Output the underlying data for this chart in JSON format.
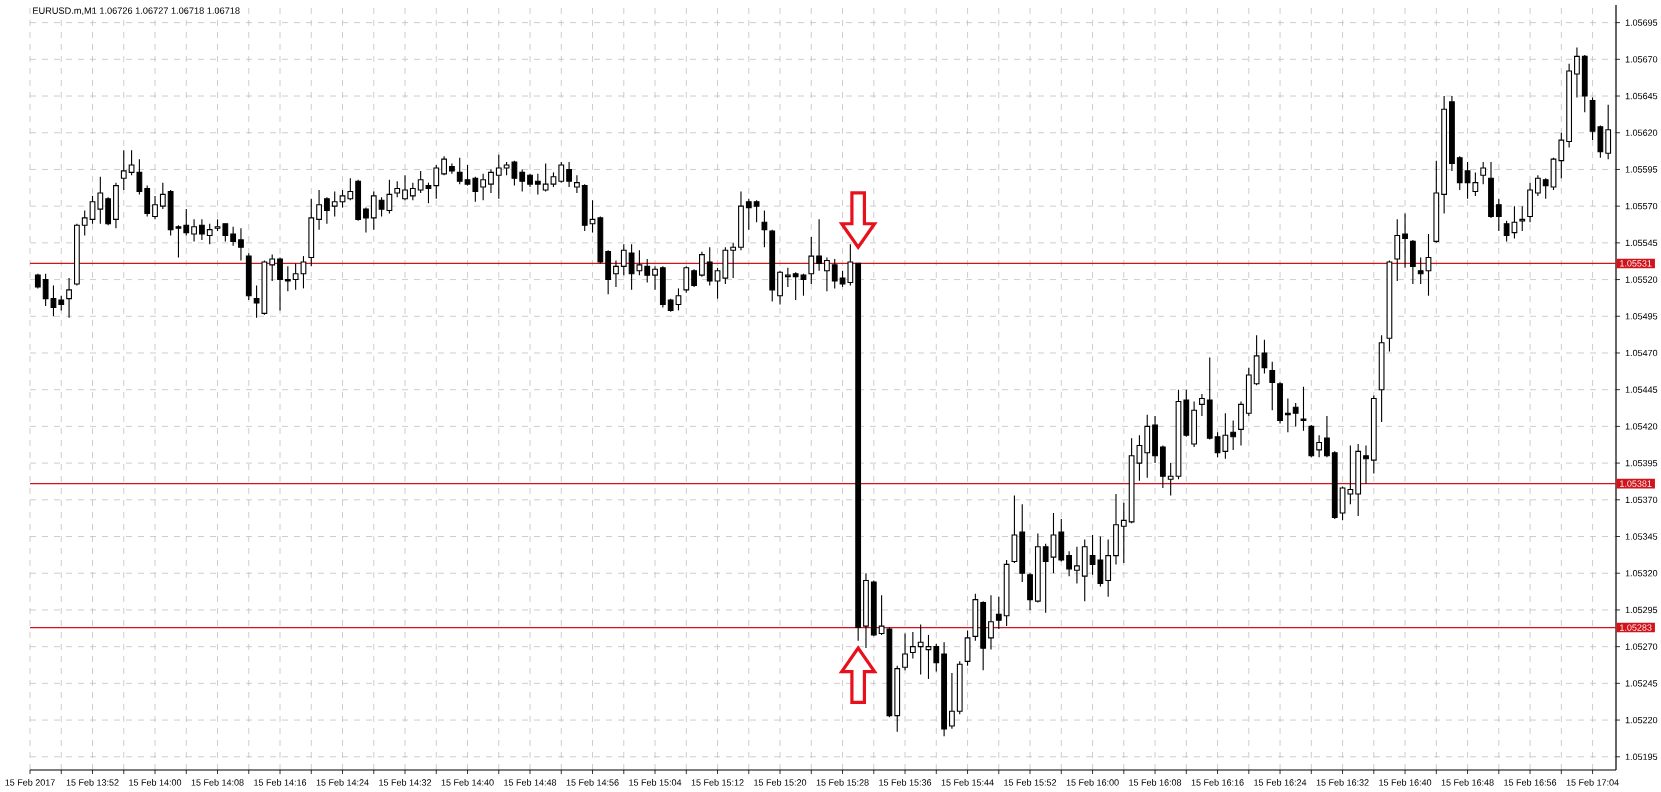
{
  "chart_data": {
    "type": "candlestick",
    "title": "EURUSD.m,M1  1.06726 1.06727 1.06718 1.06718",
    "x": [
      "2017-02-15T13:45",
      "2017-02-15T13:46",
      "2017-02-15T13:47",
      "2017-02-15T13:48",
      "2017-02-15T13:49",
      "2017-02-15T13:50",
      "2017-02-15T13:51",
      "2017-02-15T13:52",
      "2017-02-15T13:53",
      "2017-02-15T13:54",
      "2017-02-15T13:55",
      "2017-02-15T13:56",
      "2017-02-15T13:57",
      "2017-02-15T13:58",
      "2017-02-15T13:59",
      "2017-02-15T14:00",
      "2017-02-15T14:01",
      "2017-02-15T14:02",
      "2017-02-15T14:03",
      "2017-02-15T14:04",
      "2017-02-15T14:05",
      "2017-02-15T14:06",
      "2017-02-15T14:07",
      "2017-02-15T14:08",
      "2017-02-15T14:09",
      "2017-02-15T14:10",
      "2017-02-15T14:11",
      "2017-02-15T14:12",
      "2017-02-15T14:13",
      "2017-02-15T14:14",
      "2017-02-15T14:15",
      "2017-02-15T14:16",
      "2017-02-15T14:17",
      "2017-02-15T14:18",
      "2017-02-15T14:19",
      "2017-02-15T14:20",
      "2017-02-15T14:21",
      "2017-02-15T14:22",
      "2017-02-15T14:23",
      "2017-02-15T14:24",
      "2017-02-15T14:25",
      "2017-02-15T14:26",
      "2017-02-15T14:27",
      "2017-02-15T14:28",
      "2017-02-15T14:29",
      "2017-02-15T14:30",
      "2017-02-15T14:31",
      "2017-02-15T14:32",
      "2017-02-15T14:33",
      "2017-02-15T14:34",
      "2017-02-15T14:35",
      "2017-02-15T14:36",
      "2017-02-15T14:37",
      "2017-02-15T14:38",
      "2017-02-15T14:39",
      "2017-02-15T14:40",
      "2017-02-15T14:41",
      "2017-02-15T14:42",
      "2017-02-15T14:43",
      "2017-02-15T14:44",
      "2017-02-15T14:45",
      "2017-02-15T14:46",
      "2017-02-15T14:47",
      "2017-02-15T14:48",
      "2017-02-15T14:49",
      "2017-02-15T14:50",
      "2017-02-15T14:51",
      "2017-02-15T14:52",
      "2017-02-15T14:53",
      "2017-02-15T14:54",
      "2017-02-15T14:55",
      "2017-02-15T14:56",
      "2017-02-15T14:57",
      "2017-02-15T14:58",
      "2017-02-15T14:59",
      "2017-02-15T15:00",
      "2017-02-15T15:01",
      "2017-02-15T15:02",
      "2017-02-15T15:03",
      "2017-02-15T15:04",
      "2017-02-15T15:05",
      "2017-02-15T15:06",
      "2017-02-15T15:07",
      "2017-02-15T15:08",
      "2017-02-15T15:09",
      "2017-02-15T15:10",
      "2017-02-15T15:11",
      "2017-02-15T15:12",
      "2017-02-15T15:13",
      "2017-02-15T15:14",
      "2017-02-15T15:15",
      "2017-02-15T15:16",
      "2017-02-15T15:17",
      "2017-02-15T15:18",
      "2017-02-15T15:19",
      "2017-02-15T15:20",
      "2017-02-15T15:21",
      "2017-02-15T15:22",
      "2017-02-15T15:23",
      "2017-02-15T15:24",
      "2017-02-15T15:25",
      "2017-02-15T15:26",
      "2017-02-15T15:27",
      "2017-02-15T15:28",
      "2017-02-15T15:29",
      "2017-02-15T15:30",
      "2017-02-15T15:31",
      "2017-02-15T15:32",
      "2017-02-15T15:33",
      "2017-02-15T15:34",
      "2017-02-15T15:35",
      "2017-02-15T15:36",
      "2017-02-15T15:37",
      "2017-02-15T15:38",
      "2017-02-15T15:39",
      "2017-02-15T15:40",
      "2017-02-15T15:41",
      "2017-02-15T15:42",
      "2017-02-15T15:43",
      "2017-02-15T15:44",
      "2017-02-15T15:45",
      "2017-02-15T15:46",
      "2017-02-15T15:47",
      "2017-02-15T15:48",
      "2017-02-15T15:49",
      "2017-02-15T15:50",
      "2017-02-15T15:51",
      "2017-02-15T15:52",
      "2017-02-15T15:53",
      "2017-02-15T15:54",
      "2017-02-15T15:55",
      "2017-02-15T15:56",
      "2017-02-15T15:57",
      "2017-02-15T15:58",
      "2017-02-15T15:59",
      "2017-02-15T16:00",
      "2017-02-15T16:01",
      "2017-02-15T16:02",
      "2017-02-15T16:03",
      "2017-02-15T16:04",
      "2017-02-15T16:05",
      "2017-02-15T16:06",
      "2017-02-15T16:07",
      "2017-02-15T16:08",
      "2017-02-15T16:09",
      "2017-02-15T16:10",
      "2017-02-15T16:11",
      "2017-02-15T16:12",
      "2017-02-15T16:13",
      "2017-02-15T16:14",
      "2017-02-15T16:15",
      "2017-02-15T16:16",
      "2017-02-15T16:17",
      "2017-02-15T16:18",
      "2017-02-15T16:19",
      "2017-02-15T16:20",
      "2017-02-15T16:21",
      "2017-02-15T16:22",
      "2017-02-15T16:23",
      "2017-02-15T16:24",
      "2017-02-15T16:25",
      "2017-02-15T16:26",
      "2017-02-15T16:27",
      "2017-02-15T16:28",
      "2017-02-15T16:29",
      "2017-02-15T16:30",
      "2017-02-15T16:31",
      "2017-02-15T16:32",
      "2017-02-15T16:33",
      "2017-02-15T16:34",
      "2017-02-15T16:35",
      "2017-02-15T16:36",
      "2017-02-15T16:37",
      "2017-02-15T16:38",
      "2017-02-15T16:39",
      "2017-02-15T16:40",
      "2017-02-15T16:41",
      "2017-02-15T16:42",
      "2017-02-15T16:43",
      "2017-02-15T16:44",
      "2017-02-15T16:45",
      "2017-02-15T16:46",
      "2017-02-15T16:47",
      "2017-02-15T16:48",
      "2017-02-15T16:49",
      "2017-02-15T16:50",
      "2017-02-15T16:51",
      "2017-02-15T16:52",
      "2017-02-15T16:53",
      "2017-02-15T16:54",
      "2017-02-15T16:55",
      "2017-02-15T16:56",
      "2017-02-15T16:57",
      "2017-02-15T16:58",
      "2017-02-15T16:59",
      "2017-02-15T17:00",
      "2017-02-15T17:01",
      "2017-02-15T17:02",
      "2017-02-15T17:03",
      "2017-02-15T17:04",
      "2017-02-15T17:05",
      "2017-02-15T17:06"
    ],
    "ohlc": [
      [
        1.05523,
        1.05524,
        1.05514,
        1.05515
      ],
      [
        1.0552,
        1.05524,
        1.05502,
        1.05507
      ],
      [
        1.05507,
        1.05516,
        1.05495,
        1.05501
      ],
      [
        1.05506,
        1.05509,
        1.05499,
        1.05503
      ],
      [
        1.05507,
        1.05521,
        1.05494,
        1.05513
      ],
      [
        1.05517,
        1.05558,
        1.05516,
        1.05557
      ],
      [
        1.05557,
        1.05567,
        1.0555,
        1.05562
      ],
      [
        1.05561,
        1.05577,
        1.05558,
        1.05573
      ],
      [
        1.05568,
        1.0559,
        1.05558,
        1.05579
      ],
      [
        1.05575,
        1.05576,
        1.05557,
        1.05558
      ],
      [
        1.05561,
        1.05586,
        1.05555,
        1.05584
      ],
      [
        1.05589,
        1.05608,
        1.05581,
        1.05594
      ],
      [
        1.05593,
        1.05608,
        1.05591,
        1.05598
      ],
      [
        1.05593,
        1.05602,
        1.05578,
        1.0558
      ],
      [
        1.05582,
        1.05584,
        1.05563,
        1.05565
      ],
      [
        1.05563,
        1.05577,
        1.05561,
        1.05571
      ],
      [
        1.0557,
        1.05586,
        1.05568,
        1.05578
      ],
      [
        1.0558,
        1.05581,
        1.0555,
        1.05554
      ],
      [
        1.05556,
        1.05557,
        1.05535,
        1.05555
      ],
      [
        1.05557,
        1.05568,
        1.0555,
        1.05552
      ],
      [
        1.05551,
        1.05561,
        1.05546,
        1.05556
      ],
      [
        1.05557,
        1.05561,
        1.05547,
        1.05551
      ],
      [
        1.0555,
        1.05558,
        1.05544,
        1.05554
      ],
      [
        1.05555,
        1.05561,
        1.05553,
        1.05556
      ],
      [
        1.05558,
        1.05558,
        1.05546,
        1.0555
      ],
      [
        1.05551,
        1.05556,
        1.05543,
        1.05546
      ],
      [
        1.05547,
        1.05555,
        1.05533,
        1.05542
      ],
      [
        1.05536,
        1.05538,
        1.05506,
        1.05509
      ],
      [
        1.05507,
        1.05516,
        1.05494,
        1.05504
      ],
      [
        1.05497,
        1.05533,
        1.05496,
        1.05532
      ],
      [
        1.0553,
        1.05537,
        1.05519,
        1.05534
      ],
      [
        1.05534,
        1.05535,
        1.05499,
        1.0552
      ],
      [
        1.0552,
        1.05529,
        1.05512,
        1.05519
      ],
      [
        1.0552,
        1.05531,
        1.05513,
        1.05524
      ],
      [
        1.05524,
        1.05536,
        1.05514,
        1.05532
      ],
      [
        1.05535,
        1.05575,
        1.05529,
        1.05562
      ],
      [
        1.05561,
        1.05581,
        1.05554,
        1.05571
      ],
      [
        1.05575,
        1.05576,
        1.05558,
        1.05567
      ],
      [
        1.0557,
        1.0558,
        1.05563,
        1.05573
      ],
      [
        1.05573,
        1.05581,
        1.05569,
        1.05577
      ],
      [
        1.05575,
        1.05589,
        1.05574,
        1.0558
      ],
      [
        1.05587,
        1.05588,
        1.0556,
        1.05561
      ],
      [
        1.05568,
        1.05569,
        1.05552,
        1.05562
      ],
      [
        1.05562,
        1.0558,
        1.05554,
        1.05577
      ],
      [
        1.05574,
        1.05576,
        1.05563,
        1.05568
      ],
      [
        1.05567,
        1.05588,
        1.05565,
        1.05578
      ],
      [
        1.05579,
        1.05587,
        1.05576,
        1.05582
      ],
      [
        1.05575,
        1.05591,
        1.05574,
        1.05581
      ],
      [
        1.05577,
        1.05586,
        1.05574,
        1.05582
      ],
      [
        1.05581,
        1.05594,
        1.05579,
        1.05588
      ],
      [
        1.05584,
        1.05586,
        1.05572,
        1.05582
      ],
      [
        1.05584,
        1.05598,
        1.05575,
        1.05596
      ],
      [
        1.05592,
        1.05604,
        1.05591,
        1.05602
      ],
      [
        1.05597,
        1.05599,
        1.05592,
        1.05594
      ],
      [
        1.05593,
        1.05603,
        1.05585,
        1.05587
      ],
      [
        1.05588,
        1.05598,
        1.05584,
        1.05585
      ],
      [
        1.05589,
        1.0559,
        1.05573,
        1.0558
      ],
      [
        1.05583,
        1.05592,
        1.05574,
        1.05588
      ],
      [
        1.05585,
        1.05595,
        1.05579,
        1.05593
      ],
      [
        1.05591,
        1.05605,
        1.05575,
        1.05596
      ],
      [
        1.05596,
        1.056,
        1.05591,
        1.05598
      ],
      [
        1.056,
        1.05601,
        1.05584,
        1.05589
      ],
      [
        1.05593,
        1.05595,
        1.0558,
        1.05587
      ],
      [
        1.05591,
        1.05592,
        1.05583,
        1.05585
      ],
      [
        1.05587,
        1.05592,
        1.05578,
        1.05585
      ],
      [
        1.05581,
        1.05599,
        1.0558,
        1.05585
      ],
      [
        1.05585,
        1.05593,
        1.05583,
        1.0559
      ],
      [
        1.05587,
        1.056,
        1.05586,
        1.05598
      ],
      [
        1.05595,
        1.056,
        1.05583,
        1.05587
      ],
      [
        1.05583,
        1.05591,
        1.05579,
        1.05586
      ],
      [
        1.05584,
        1.05585,
        1.05553,
        1.05557
      ],
      [
        1.05558,
        1.05574,
        1.05552,
        1.05561
      ],
      [
        1.05562,
        1.05563,
        1.05531,
        1.05532
      ],
      [
        1.05539,
        1.0554,
        1.0551,
        1.0552
      ],
      [
        1.05524,
        1.05533,
        1.05515,
        1.05529
      ],
      [
        1.05529,
        1.05544,
        1.05523,
        1.0554
      ],
      [
        1.05538,
        1.05544,
        1.05513,
        1.05524
      ],
      [
        1.05526,
        1.0554,
        1.05523,
        1.0553
      ],
      [
        1.05529,
        1.05534,
        1.05518,
        1.05523
      ],
      [
        1.05523,
        1.05529,
        1.05513,
        1.05527
      ],
      [
        1.05528,
        1.05529,
        1.05501,
        1.05503
      ],
      [
        1.05506,
        1.05507,
        1.05498,
        1.05499
      ],
      [
        1.05503,
        1.05514,
        1.05499,
        1.05509
      ],
      [
        1.05513,
        1.05529,
        1.05511,
        1.05528
      ],
      [
        1.05526,
        1.05527,
        1.05515,
        1.05516
      ],
      [
        1.05523,
        1.05539,
        1.05522,
        1.05537
      ],
      [
        1.05532,
        1.05542,
        1.05516,
        1.05519
      ],
      [
        1.05519,
        1.05528,
        1.05507,
        1.05526
      ],
      [
        1.05521,
        1.05542,
        1.05517,
        1.0554
      ],
      [
        1.0554,
        1.05545,
        1.05521,
        1.05542
      ],
      [
        1.05542,
        1.0558,
        1.0554,
        1.0557
      ],
      [
        1.05573,
        1.05575,
        1.05554,
        1.05569
      ],
      [
        1.05573,
        1.05574,
        1.05559,
        1.0557
      ],
      [
        1.05559,
        1.05567,
        1.05542,
        1.05554
      ],
      [
        1.05553,
        1.05554,
        1.05505,
        1.05513
      ],
      [
        1.05509,
        1.05526,
        1.05503,
        1.05525
      ],
      [
        1.05522,
        1.05528,
        1.05515,
        1.05523
      ],
      [
        1.05524,
        1.05525,
        1.05506,
        1.05522
      ],
      [
        1.05523,
        1.05524,
        1.05509,
        1.0552
      ],
      [
        1.05524,
        1.05549,
        1.05517,
        1.05536
      ],
      [
        1.05536,
        1.05561,
        1.05526,
        1.05531
      ],
      [
        1.05526,
        1.05535,
        1.05512,
        1.05533
      ],
      [
        1.0553,
        1.05534,
        1.05514,
        1.05519
      ],
      [
        1.05521,
        1.05526,
        1.05515,
        1.05517
      ],
      [
        1.05518,
        1.05544,
        1.05516,
        1.05532
      ],
      [
        1.05531,
        1.05531,
        1.05274,
        1.05283
      ],
      [
        1.05284,
        1.0532,
        1.05269,
        1.05315
      ],
      [
        1.05314,
        1.05315,
        1.05277,
        1.05278
      ],
      [
        1.05279,
        1.05305,
        1.05278,
        1.05284
      ],
      [
        1.05282,
        1.05283,
        1.05222,
        1.05223
      ],
      [
        1.05223,
        1.05257,
        1.05212,
        1.05255
      ],
      [
        1.05256,
        1.05279,
        1.05254,
        1.05265
      ],
      [
        1.05266,
        1.0528,
        1.05262,
        1.0527
      ],
      [
        1.0527,
        1.05285,
        1.05251,
        1.05273
      ],
      [
        1.05268,
        1.05278,
        1.05248,
        1.0527
      ],
      [
        1.0527,
        1.05272,
        1.05253,
        1.05259
      ],
      [
        1.05265,
        1.05273,
        1.05209,
        1.05214
      ],
      [
        1.05216,
        1.05252,
        1.05214,
        1.05226
      ],
      [
        1.05226,
        1.0526,
        1.05224,
        1.05258
      ],
      [
        1.0526,
        1.05281,
        1.05257,
        1.05276
      ],
      [
        1.05277,
        1.05306,
        1.05274,
        1.05302
      ],
      [
        1.053,
        1.05301,
        1.05254,
        1.05269
      ],
      [
        1.05276,
        1.05305,
        1.05268,
        1.05287
      ],
      [
        1.05292,
        1.05304,
        1.05282,
        1.05288
      ],
      [
        1.05291,
        1.05329,
        1.05284,
        1.05326
      ],
      [
        1.05328,
        1.05373,
        1.05327,
        1.05346
      ],
      [
        1.05348,
        1.05367,
        1.05314,
        1.0532
      ],
      [
        1.05319,
        1.0532,
        1.05295,
        1.05302
      ],
      [
        1.05301,
        1.05347,
        1.053,
        1.05338
      ],
      [
        1.05338,
        1.0534,
        1.05293,
        1.05328
      ],
      [
        1.05331,
        1.05361,
        1.0532,
        1.05346
      ],
      [
        1.05348,
        1.05357,
        1.05328,
        1.05329
      ],
      [
        1.05332,
        1.05335,
        1.05318,
        1.05323
      ],
      [
        1.05322,
        1.05338,
        1.05313,
        1.05325
      ],
      [
        1.05318,
        1.05343,
        1.05301,
        1.05338
      ],
      [
        1.05332,
        1.05346,
        1.05319,
        1.05326
      ],
      [
        1.05329,
        1.05345,
        1.05311,
        1.05313
      ],
      [
        1.05315,
        1.05343,
        1.05304,
        1.05332
      ],
      [
        1.05332,
        1.05374,
        1.05326,
        1.05353
      ],
      [
        1.05352,
        1.05368,
        1.05327,
        1.05356
      ],
      [
        1.05355,
        1.05412,
        1.05354,
        1.054
      ],
      [
        1.05395,
        1.05414,
        1.05383,
        1.05407
      ],
      [
        1.05402,
        1.05428,
        1.05385,
        1.0542
      ],
      [
        1.05421,
        1.05427,
        1.05395,
        1.054
      ],
      [
        1.05406,
        1.05407,
        1.05378,
        1.05386
      ],
      [
        1.05384,
        1.05395,
        1.05373,
        1.05386
      ],
      [
        1.05386,
        1.05445,
        1.05384,
        1.05437
      ],
      [
        1.05438,
        1.05445,
        1.05413,
        1.05414
      ],
      [
        1.05408,
        1.05437,
        1.05406,
        1.05431
      ],
      [
        1.05435,
        1.05442,
        1.05427,
        1.05439
      ],
      [
        1.05438,
        1.05467,
        1.05411,
        1.05412
      ],
      [
        1.05413,
        1.05416,
        1.05399,
        1.05402
      ],
      [
        1.05403,
        1.05429,
        1.05398,
        1.05414
      ],
      [
        1.05416,
        1.05424,
        1.05404,
        1.05413
      ],
      [
        1.05418,
        1.05437,
        1.05407,
        1.05435
      ],
      [
        1.05429,
        1.0546,
        1.05427,
        1.05455
      ],
      [
        1.05449,
        1.05482,
        1.05448,
        1.05468
      ],
      [
        1.0547,
        1.05479,
        1.05456,
        1.0546
      ],
      [
        1.05458,
        1.05464,
        1.05431,
        1.0545
      ],
      [
        1.05449,
        1.0545,
        1.05422,
        1.05424
      ],
      [
        1.05429,
        1.05439,
        1.05416,
        1.05428
      ],
      [
        1.05433,
        1.05436,
        1.0542,
        1.05429
      ],
      [
        1.05425,
        1.05447,
        1.05417,
        1.05424
      ],
      [
        1.0542,
        1.05421,
        1.05399,
        1.054
      ],
      [
        1.05404,
        1.05414,
        1.05399,
        1.05409
      ],
      [
        1.05412,
        1.05427,
        1.05399,
        1.054
      ],
      [
        1.05402,
        1.05403,
        1.05357,
        1.05358
      ],
      [
        1.05361,
        1.05379,
        1.05356,
        1.05378
      ],
      [
        1.05374,
        1.05407,
        1.05367,
        1.05377
      ],
      [
        1.05374,
        1.05408,
        1.05359,
        1.05403
      ],
      [
        1.054,
        1.05407,
        1.05381,
        1.05398
      ],
      [
        1.05397,
        1.05441,
        1.05388,
        1.05439
      ],
      [
        1.05445,
        1.05482,
        1.05423,
        1.05477
      ],
      [
        1.0548,
        1.05533,
        1.05471,
        1.05532
      ],
      [
        1.05534,
        1.05561,
        1.05519,
        1.0555
      ],
      [
        1.05551,
        1.05565,
        1.05528,
        1.05548
      ],
      [
        1.05546,
        1.05547,
        1.05517,
        1.05529
      ],
      [
        1.05526,
        1.05535,
        1.05517,
        1.05524
      ],
      [
        1.05526,
        1.05551,
        1.05509,
        1.05535
      ],
      [
        1.05546,
        1.05601,
        1.05545,
        1.05579
      ],
      [
        1.05578,
        1.05645,
        1.05565,
        1.05636
      ],
      [
        1.05641,
        1.05645,
        1.05594,
        1.05599
      ],
      [
        1.05603,
        1.05604,
        1.05581,
        1.05586
      ],
      [
        1.05594,
        1.056,
        1.05575,
        1.05586
      ],
      [
        1.0558,
        1.05593,
        1.05577,
        1.05586
      ],
      [
        1.05591,
        1.056,
        1.05585,
        1.05596
      ],
      [
        1.05589,
        1.056,
        1.05562,
        1.05563
      ],
      [
        1.05571,
        1.05575,
        1.05553,
        1.05563
      ],
      [
        1.05558,
        1.0556,
        1.05546,
        1.0555
      ],
      [
        1.05552,
        1.0557,
        1.05548,
        1.05559
      ],
      [
        1.0556,
        1.0557,
        1.05553,
        1.05561
      ],
      [
        1.05563,
        1.05586,
        1.05559,
        1.05581
      ],
      [
        1.05579,
        1.05591,
        1.05577,
        1.05589
      ],
      [
        1.05588,
        1.05589,
        1.05575,
        1.05584
      ],
      [
        1.05583,
        1.05603,
        1.05581,
        1.05602
      ],
      [
        1.05601,
        1.0562,
        1.05589,
        1.05615
      ],
      [
        1.05614,
        1.05667,
        1.0561,
        1.05662
      ],
      [
        1.0566,
        1.05678,
        1.05644,
        1.05672
      ],
      [
        1.05672,
        1.05673,
        1.05634,
        1.05645
      ],
      [
        1.05642,
        1.05644,
        1.05615,
        1.05621
      ],
      [
        1.05624,
        1.05625,
        1.05603,
        1.05607
      ],
      [
        1.05606,
        1.05639,
        1.05602,
        1.05622
      ]
    ],
    "xlim": [
      "2017-02-15T13:44",
      "2017-02-15T17:07"
    ],
    "ylim": [
      1.05186,
      1.05707
    ],
    "xticks": [
      {
        "value": "2017-02-15T13:44",
        "label": "15 Feb 2017"
      },
      {
        "value": "2017-02-15T13:48",
        "label": null
      },
      {
        "value": "2017-02-15T13:52",
        "label": "15 Feb 13:52"
      },
      {
        "value": "2017-02-15T13:56",
        "label": null
      },
      {
        "value": "2017-02-15T14:00",
        "label": "15 Feb 14:00"
      },
      {
        "value": "2017-02-15T14:04",
        "label": null
      },
      {
        "value": "2017-02-15T14:08",
        "label": "15 Feb 14:08"
      },
      {
        "value": "2017-02-15T14:12",
        "label": null
      },
      {
        "value": "2017-02-15T14:16",
        "label": "15 Feb 14:16"
      },
      {
        "value": "2017-02-15T14:20",
        "label": null
      },
      {
        "value": "2017-02-15T14:24",
        "label": "15 Feb 14:24"
      },
      {
        "value": "2017-02-15T14:28",
        "label": null
      },
      {
        "value": "2017-02-15T14:32",
        "label": "15 Feb 14:32"
      },
      {
        "value": "2017-02-15T14:36",
        "label": null
      },
      {
        "value": "2017-02-15T14:40",
        "label": "15 Feb 14:40"
      },
      {
        "value": "2017-02-15T14:44",
        "label": null
      },
      {
        "value": "2017-02-15T14:48",
        "label": "15 Feb 14:48"
      },
      {
        "value": "2017-02-15T14:52",
        "label": null
      },
      {
        "value": "2017-02-15T14:56",
        "label": "15 Feb 14:56"
      },
      {
        "value": "2017-02-15T15:00",
        "label": null
      },
      {
        "value": "2017-02-15T15:04",
        "label": "15 Feb 15:04"
      },
      {
        "value": "2017-02-15T15:08",
        "label": null
      },
      {
        "value": "2017-02-15T15:12",
        "label": "15 Feb 15:12"
      },
      {
        "value": "2017-02-15T15:16",
        "label": null
      },
      {
        "value": "2017-02-15T15:20",
        "label": "15 Feb 15:20"
      },
      {
        "value": "2017-02-15T15:24",
        "label": null
      },
      {
        "value": "2017-02-15T15:28",
        "label": "15 Feb 15:28"
      },
      {
        "value": "2017-02-15T15:32",
        "label": null
      },
      {
        "value": "2017-02-15T15:36",
        "label": "15 Feb 15:36"
      },
      {
        "value": "2017-02-15T15:40",
        "label": null
      },
      {
        "value": "2017-02-15T15:44",
        "label": "15 Feb 15:44"
      },
      {
        "value": "2017-02-15T15:48",
        "label": null
      },
      {
        "value": "2017-02-15T15:52",
        "label": "15 Feb 15:52"
      },
      {
        "value": "2017-02-15T15:56",
        "label": null
      },
      {
        "value": "2017-02-15T16:00",
        "label": "15 Feb 16:00"
      },
      {
        "value": "2017-02-15T16:04",
        "label": null
      },
      {
        "value": "2017-02-15T16:08",
        "label": "15 Feb 16:08"
      },
      {
        "value": "2017-02-15T16:12",
        "label": null
      },
      {
        "value": "2017-02-15T16:16",
        "label": "15 Feb 16:16"
      },
      {
        "value": "2017-02-15T16:20",
        "label": null
      },
      {
        "value": "2017-02-15T16:24",
        "label": "15 Feb 16:24"
      },
      {
        "value": "2017-02-15T16:28",
        "label": null
      },
      {
        "value": "2017-02-15T16:32",
        "label": "15 Feb 16:32"
      },
      {
        "value": "2017-02-15T16:36",
        "label": null
      },
      {
        "value": "2017-02-15T16:40",
        "label": "15 Feb 16:40"
      },
      {
        "value": "2017-02-15T16:44",
        "label": null
      },
      {
        "value": "2017-02-15T16:48",
        "label": "15 Feb 16:48"
      },
      {
        "value": "2017-02-15T16:52",
        "label": null
      },
      {
        "value": "2017-02-15T16:56",
        "label": "15 Feb 16:56"
      },
      {
        "value": "2017-02-15T17:00",
        "label": null
      },
      {
        "value": "2017-02-15T17:04",
        "label": "15 Feb 17:04"
      }
    ],
    "yticks": [
      {
        "value": 1.05195,
        "label": "1.05195"
      },
      {
        "value": 1.0522,
        "label": "1.05220"
      },
      {
        "value": 1.05245,
        "label": "1.05245"
      },
      {
        "value": 1.0527,
        "label": "1.05270"
      },
      {
        "value": 1.05295,
        "label": "1.05295"
      },
      {
        "value": 1.0532,
        "label": "1.05320"
      },
      {
        "value": 1.05345,
        "label": "1.05345"
      },
      {
        "value": 1.0537,
        "label": "1.05370"
      },
      {
        "value": 1.05395,
        "label": "1.05395"
      },
      {
        "value": 1.0542,
        "label": "1.05420"
      },
      {
        "value": 1.05445,
        "label": "1.05445"
      },
      {
        "value": 1.0547,
        "label": "1.05470"
      },
      {
        "value": 1.05495,
        "label": "1.05495"
      },
      {
        "value": 1.0552,
        "label": "1.05520"
      },
      {
        "value": 1.05545,
        "label": "1.05545"
      },
      {
        "value": 1.0557,
        "label": "1.05570"
      },
      {
        "value": 1.05595,
        "label": "1.05595"
      },
      {
        "value": 1.0562,
        "label": "1.05620"
      },
      {
        "value": 1.05645,
        "label": "1.05645"
      },
      {
        "value": 1.0567,
        "label": "1.05670"
      },
      {
        "value": 1.05695,
        "label": "1.05695"
      }
    ],
    "grid": true,
    "ref_lines": [
      {
        "axis": "y",
        "value": 1.05531,
        "label": "1.05531",
        "color": "#d0141c"
      },
      {
        "axis": "y",
        "value": 1.05381,
        "label": "1.05381",
        "color": "#d0141c"
      },
      {
        "axis": "y",
        "value": 1.05283,
        "label": "1.05283",
        "color": "#d0141c"
      }
    ]
  }
}
